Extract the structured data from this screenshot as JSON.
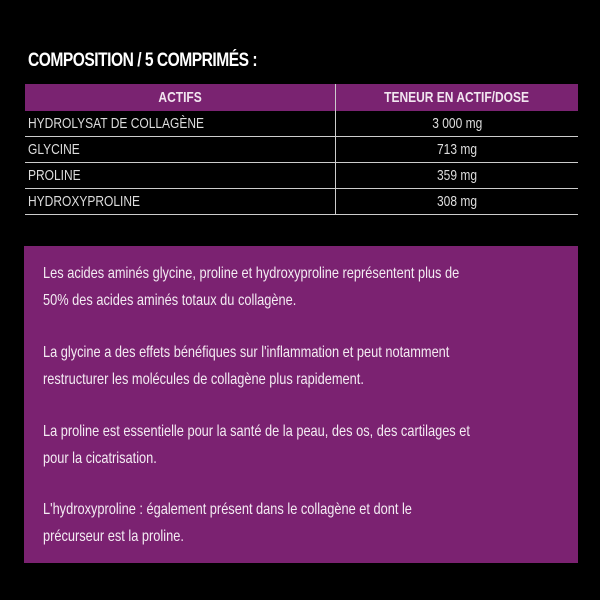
{
  "title": "COMPOSITION / 5 COMPRIMÉS :",
  "table": {
    "headers": [
      "ACTIFS",
      "TENEUR EN ACTIF/DOSE"
    ],
    "rows": [
      {
        "name": "HYDROLYSAT DE COLLAGÈNE",
        "dose": "3 000 mg"
      },
      {
        "name": "GLYCINE",
        "dose": "713 mg"
      },
      {
        "name": "PROLINE",
        "dose": "359 mg"
      },
      {
        "name": "HYDROXYPROLINE",
        "dose": "308 mg"
      }
    ]
  },
  "info": {
    "paragraphs": [
      [
        "Les acides aminés glycine, proline et hydroxyproline représentent plus de",
        "50% des acides aminés totaux du collagène."
      ],
      [
        "La glycine a des effets bénéfiques sur l'inflammation et peut notamment",
        "restructurer les molécules de collagène plus rapidement."
      ],
      [
        "La proline est essentielle pour la santé de la peau, des os, des cartilages et",
        "pour la cicatrisation."
      ],
      [
        "L'hydroxyproline : également présent dans le collagène et dont le",
        "précurseur est la proline."
      ]
    ]
  },
  "colors": {
    "accent": "#7b2271",
    "background": "#000000"
  }
}
